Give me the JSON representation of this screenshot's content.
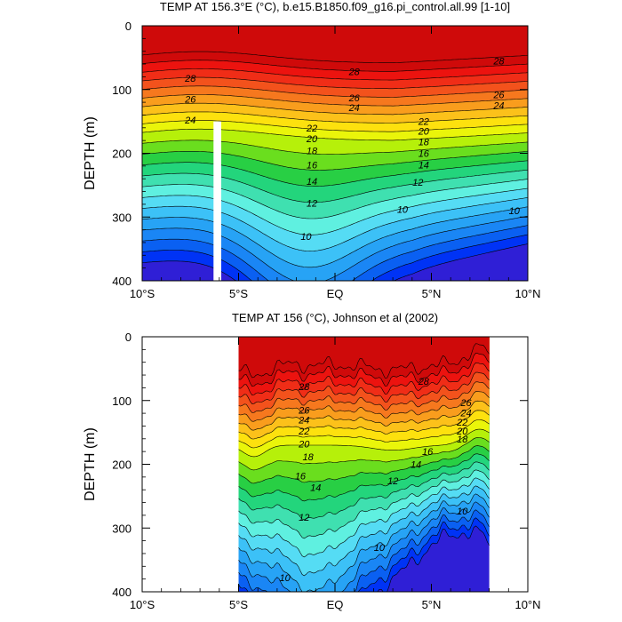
{
  "chart_data": [
    {
      "type": "contour",
      "title": "TEMP AT 156.3°E (°C), b.e15.B1850.f09_g16.pi_control.all.99 [1-10]",
      "ylabel": "DEPTH (m)",
      "xlabel": "",
      "x_ticks": [
        "10°S",
        "5°S",
        "EQ",
        "5°N",
        "10°N"
      ],
      "x_values": [
        -10,
        -5,
        0,
        5,
        10
      ],
      "y_ticks": [
        "0",
        "100",
        "200",
        "300",
        "400"
      ],
      "y_values": [
        0,
        100,
        200,
        300,
        400
      ],
      "xlim": [
        -10,
        10
      ],
      "ylim": [
        400,
        0
      ],
      "data_extent": [
        -10,
        10
      ],
      "missing_band": [
        -6.3,
        -5.9
      ],
      "levels": [
        8,
        9,
        10,
        11,
        12,
        13,
        14,
        15,
        16,
        17,
        18,
        19,
        20,
        21,
        22,
        23,
        24,
        25,
        26,
        27,
        28,
        29
      ],
      "contour_labels": [
        {
          "text": "28",
          "x": -7.5,
          "y": 82
        },
        {
          "text": "28",
          "x": 1,
          "y": 72
        },
        {
          "text": "28",
          "x": 8.5,
          "y": 55
        },
        {
          "text": "26",
          "x": -7.5,
          "y": 115
        },
        {
          "text": "26",
          "x": 1,
          "y": 113
        },
        {
          "text": "26",
          "x": 8.5,
          "y": 108
        },
        {
          "text": "24",
          "x": -7.5,
          "y": 148
        },
        {
          "text": "24",
          "x": 1,
          "y": 128
        },
        {
          "text": "24",
          "x": 8.5,
          "y": 125
        },
        {
          "text": "22",
          "x": -1.2,
          "y": 160
        },
        {
          "text": "22",
          "x": 4.6,
          "y": 150
        },
        {
          "text": "20",
          "x": -1.2,
          "y": 177
        },
        {
          "text": "20",
          "x": 4.6,
          "y": 165
        },
        {
          "text": "18",
          "x": -1.2,
          "y": 196
        },
        {
          "text": "18",
          "x": 4.6,
          "y": 182
        },
        {
          "text": "16",
          "x": -1.2,
          "y": 218
        },
        {
          "text": "16",
          "x": 4.6,
          "y": 200
        },
        {
          "text": "14",
          "x": -1.2,
          "y": 244
        },
        {
          "text": "14",
          "x": 4.6,
          "y": 218
        },
        {
          "text": "12",
          "x": -1.2,
          "y": 278
        },
        {
          "text": "12",
          "x": 4.3,
          "y": 245
        },
        {
          "text": "10",
          "x": -1.5,
          "y": 330
        },
        {
          "text": "10",
          "x": 3.5,
          "y": 288
        },
        {
          "text": "10",
          "x": 9.3,
          "y": 290
        }
      ]
    },
    {
      "type": "contour",
      "title": "TEMP AT 156 (°C), Johnson et al (2002)",
      "ylabel": "DEPTH (m)",
      "xlabel": "",
      "x_ticks": [
        "10°S",
        "5°S",
        "EQ",
        "5°N",
        "10°N"
      ],
      "x_values": [
        -10,
        -5,
        0,
        5,
        10
      ],
      "y_ticks": [
        "0",
        "100",
        "200",
        "300",
        "400"
      ],
      "y_values": [
        0,
        100,
        200,
        300,
        400
      ],
      "xlim": [
        -10,
        10
      ],
      "ylim": [
        400,
        0
      ],
      "data_extent": [
        -5,
        8
      ],
      "levels": [
        8,
        9,
        10,
        11,
        12,
        13,
        14,
        15,
        16,
        17,
        18,
        19,
        20,
        21,
        22,
        23,
        24,
        25,
        26,
        27,
        28,
        29
      ],
      "contour_labels": [
        {
          "text": "28",
          "x": -1.6,
          "y": 78
        },
        {
          "text": "28",
          "x": 4.6,
          "y": 70
        },
        {
          "text": "26",
          "x": -1.6,
          "y": 115
        },
        {
          "text": "26",
          "x": 6.8,
          "y": 103
        },
        {
          "text": "24",
          "x": -1.6,
          "y": 130
        },
        {
          "text": "24",
          "x": 6.8,
          "y": 119
        },
        {
          "text": "22",
          "x": -1.6,
          "y": 148
        },
        {
          "text": "22",
          "x": 6.6,
          "y": 134
        },
        {
          "text": "20",
          "x": -1.6,
          "y": 168
        },
        {
          "text": "20",
          "x": 6.6,
          "y": 148
        },
        {
          "text": "18",
          "x": -1.4,
          "y": 188
        },
        {
          "text": "18",
          "x": 6.6,
          "y": 160
        },
        {
          "text": "16",
          "x": -1.8,
          "y": 218
        },
        {
          "text": "16",
          "x": 4.8,
          "y": 180
        },
        {
          "text": "14",
          "x": -1.0,
          "y": 236
        },
        {
          "text": "14",
          "x": 4.2,
          "y": 200
        },
        {
          "text": "12",
          "x": 3.0,
          "y": 226
        },
        {
          "text": "12",
          "x": -1.6,
          "y": 283
        },
        {
          "text": "10",
          "x": 6.6,
          "y": 273
        },
        {
          "text": "10",
          "x": 2.3,
          "y": 330
        },
        {
          "text": "10",
          "x": -2.6,
          "y": 378
        }
      ]
    }
  ],
  "colors": {
    "palette": [
      "#2f1fd6",
      "#0033f5",
      "#0a60f2",
      "#1a86f5",
      "#27a3f5",
      "#3cc1f7",
      "#55dcf4",
      "#5ff0e0",
      "#3fe0b0",
      "#23d57c",
      "#28cf44",
      "#6ade1e",
      "#b6f00a",
      "#eaf50a",
      "#fde10e",
      "#fcc11a",
      "#f99d1d",
      "#f6781e",
      "#f3521c",
      "#f02d17",
      "#ec130f",
      "#cf0a0a"
    ]
  }
}
